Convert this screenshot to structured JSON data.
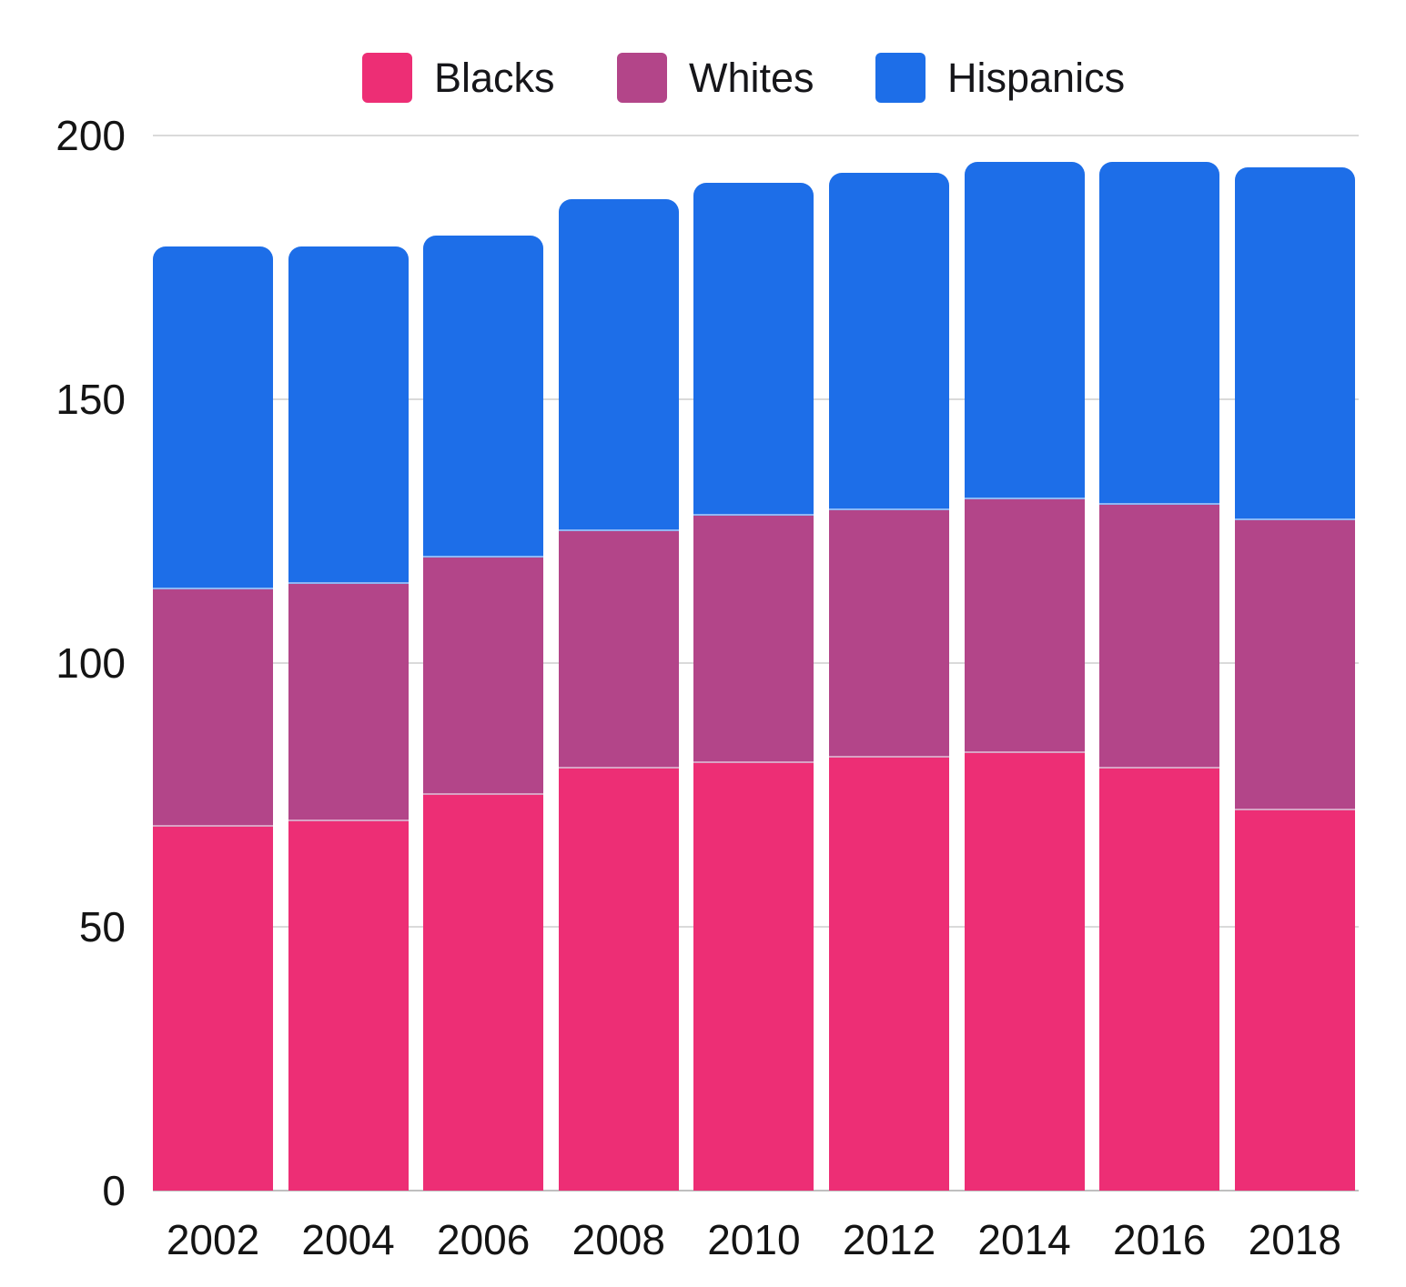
{
  "chart_data": {
    "type": "bar",
    "stacked": true,
    "title": "",
    "xlabel": "",
    "ylabel": "",
    "categories": [
      "2002",
      "2004",
      "2006",
      "2008",
      "2010",
      "2012",
      "2014",
      "2016",
      "2018"
    ],
    "series": [
      {
        "name": "Blacks",
        "color": "#ED2E75",
        "values": [
          69,
          70,
          75,
          80,
          81,
          82,
          83,
          80,
          72
        ]
      },
      {
        "name": "Whites",
        "color": "#B34589",
        "values": [
          45,
          45,
          45,
          45,
          47,
          47,
          48,
          50,
          55
        ]
      },
      {
        "name": "Hispanics",
        "color": "#1D6EE8",
        "values": [
          65,
          64,
          61,
          63,
          63,
          64,
          64,
          65,
          67
        ]
      }
    ],
    "totals": [
      179,
      179,
      181,
      188,
      191,
      193,
      195,
      195,
      194
    ],
    "ylim": [
      0,
      200
    ],
    "yticks": [
      0,
      50,
      100,
      150,
      200
    ],
    "grid": true,
    "legend_position": "top"
  },
  "axes": {
    "y_tick_labels": [
      "0",
      "50",
      "100",
      "150",
      "200"
    ],
    "x_tick_labels": [
      "2002",
      "2004",
      "2006",
      "2008",
      "2010",
      "2012",
      "2014",
      "2016",
      "2018"
    ]
  },
  "legend": {
    "items": [
      {
        "label": "Blacks",
        "color": "#ED2E75"
      },
      {
        "label": "Whites",
        "color": "#B34589"
      },
      {
        "label": "Hispanics",
        "color": "#1D6EE8"
      }
    ]
  },
  "colors": {
    "background": "#ffffff",
    "gridline": "#dadada",
    "baseline": "#bfbfbf",
    "text": "#141414"
  }
}
